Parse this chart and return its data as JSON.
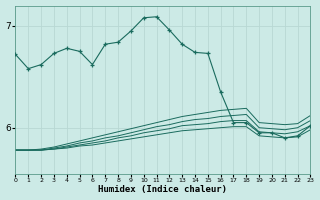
{
  "xlabel": "Humidex (Indice chaleur)",
  "background_color": "#cceae6",
  "grid_color": "#b8d8d4",
  "line_color": "#1a6b5e",
  "x_min": 0,
  "x_max": 23,
  "y_min": 5.55,
  "y_max": 7.2,
  "yticks": [
    6,
    7
  ],
  "xticks": [
    0,
    1,
    2,
    3,
    4,
    5,
    6,
    7,
    8,
    9,
    10,
    11,
    12,
    13,
    14,
    15,
    16,
    17,
    18,
    19,
    20,
    21,
    22,
    23
  ],
  "main_line_x": [
    0,
    1,
    2,
    3,
    4,
    5,
    6,
    7,
    8,
    9,
    10,
    11,
    12,
    13,
    14,
    15,
    16,
    17,
    18,
    19,
    20,
    21,
    22,
    23
  ],
  "main_line_y": [
    6.72,
    6.58,
    6.62,
    6.73,
    6.78,
    6.75,
    6.62,
    6.82,
    6.84,
    6.95,
    7.08,
    7.09,
    6.96,
    6.82,
    6.74,
    6.73,
    6.35,
    6.05,
    6.05,
    5.95,
    5.95,
    5.9,
    5.92,
    6.02
  ],
  "flat_lines_y": [
    [
      5.78,
      5.78,
      5.78,
      5.79,
      5.8,
      5.82,
      5.83,
      5.85,
      5.87,
      5.89,
      5.91,
      5.93,
      5.95,
      5.97,
      5.98,
      5.99,
      6.0,
      6.01,
      6.01,
      5.92,
      5.91,
      5.9,
      5.91,
      5.98
    ],
    [
      5.78,
      5.78,
      5.78,
      5.79,
      5.81,
      5.83,
      5.85,
      5.87,
      5.9,
      5.92,
      5.95,
      5.97,
      5.99,
      6.02,
      6.03,
      6.04,
      6.06,
      6.07,
      6.07,
      5.96,
      5.95,
      5.94,
      5.96,
      6.02
    ],
    [
      5.78,
      5.78,
      5.78,
      5.8,
      5.82,
      5.85,
      5.87,
      5.9,
      5.92,
      5.95,
      5.98,
      6.01,
      6.03,
      6.06,
      6.08,
      6.09,
      6.11,
      6.12,
      6.13,
      6.0,
      5.99,
      5.98,
      6.0,
      6.07
    ],
    [
      5.78,
      5.78,
      5.79,
      5.81,
      5.84,
      5.87,
      5.9,
      5.93,
      5.96,
      5.99,
      6.02,
      6.05,
      6.08,
      6.11,
      6.13,
      6.15,
      6.17,
      6.18,
      6.19,
      6.05,
      6.04,
      6.03,
      6.04,
      6.12
    ]
  ]
}
